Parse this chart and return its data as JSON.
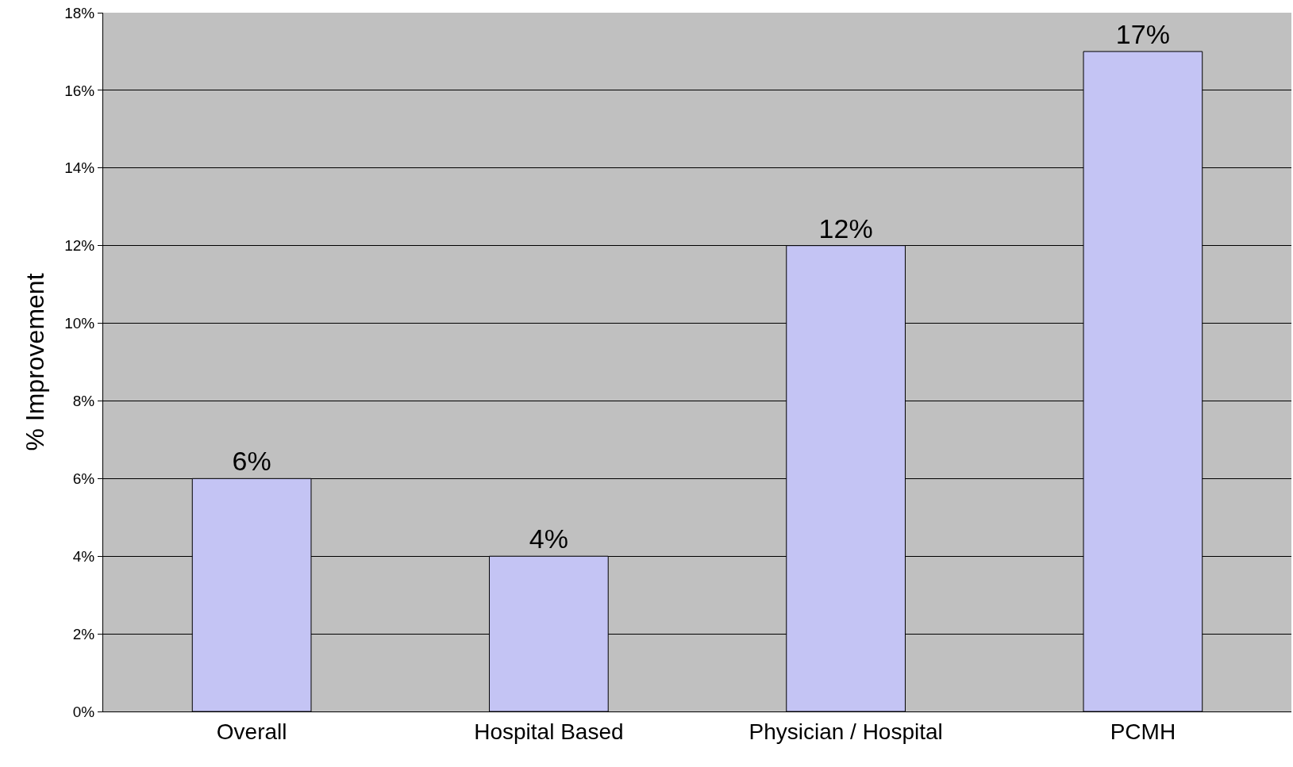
{
  "chart_data": {
    "type": "bar",
    "ylabel": "% Improvement",
    "categories": [
      "Overall",
      "Hospital Based",
      "Physician / Hospital",
      "PCMH"
    ],
    "values": [
      6,
      4,
      12,
      17
    ],
    "value_labels": [
      "6%",
      "4%",
      "12%",
      "17%"
    ],
    "color": "#c4c4f4",
    "ylim": [
      0,
      18
    ],
    "yticks": [
      {
        "value": 0,
        "label": "0%"
      },
      {
        "value": 2,
        "label": "2%"
      },
      {
        "value": 4,
        "label": "4%"
      },
      {
        "value": 6,
        "label": "6%"
      },
      {
        "value": 8,
        "label": "8%"
      },
      {
        "value": 10,
        "label": "10%"
      },
      {
        "value": 12,
        "label": "12%"
      },
      {
        "value": 14,
        "label": "14%"
      },
      {
        "value": 16,
        "label": "16%"
      },
      {
        "value": 18,
        "label": "18%"
      }
    ],
    "grid": "y",
    "legend": false
  }
}
